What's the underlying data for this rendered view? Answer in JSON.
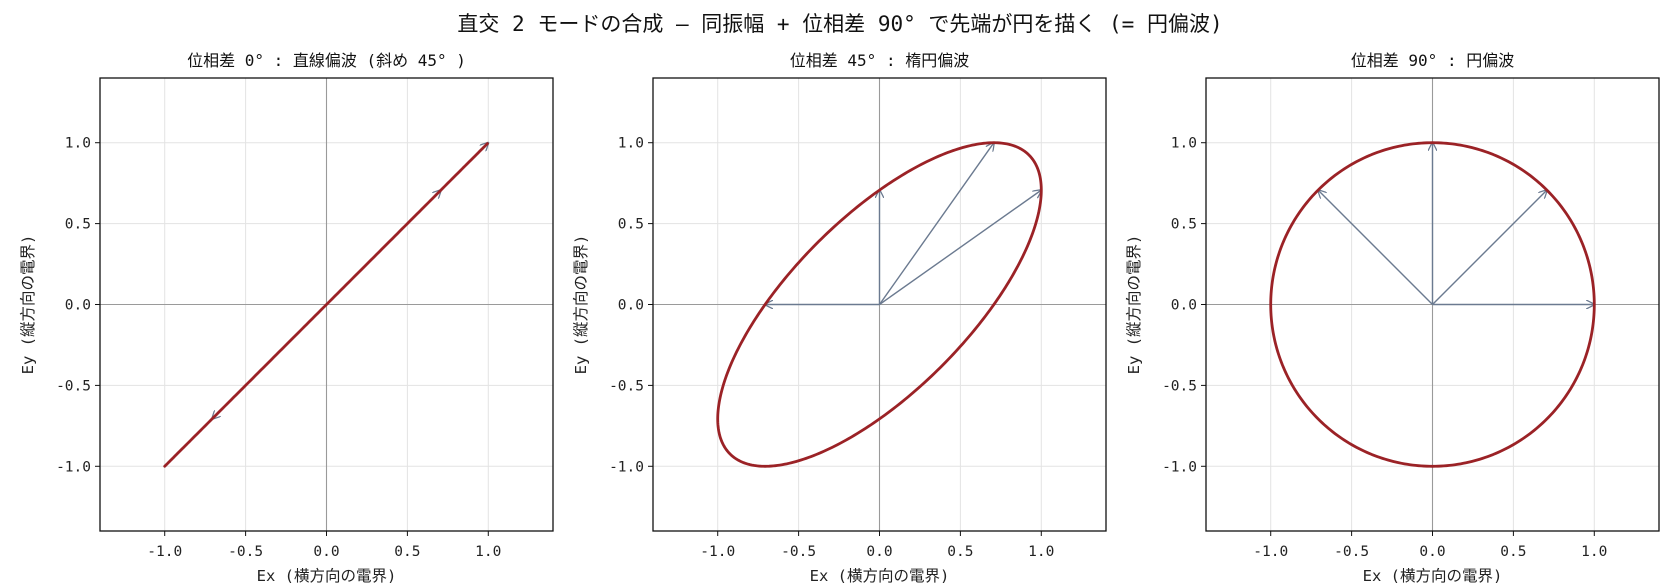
{
  "suptitle": "直交 2 モードの合成 — 同振幅 + 位相差 90° で先端が円を描く (= 円偏波)",
  "colors": {
    "curve": "#9b2226",
    "arrow": "#6b7a90",
    "grid": "#e3e3e3",
    "zero_line": "#9a9a9a",
    "frame": "#111111"
  },
  "chart_data": [
    {
      "type": "line",
      "title": "位相差 0° : 直線偏波 (斜め 45° )",
      "xlabel": "Ex (横方向の電界)",
      "ylabel": "Ey (縦方向の電界)",
      "xlim": [
        -1.4,
        1.4
      ],
      "ylim": [
        -1.4,
        1.4
      ],
      "xticks": [
        "-1.0",
        "-0.5",
        "0.0",
        "0.5",
        "1.0"
      ],
      "yticks": [
        "-1.0",
        "-0.5",
        "0.0",
        "0.5",
        "1.0"
      ],
      "xtick_values": [
        -1.0,
        -0.5,
        0.0,
        0.5,
        1.0
      ],
      "ytick_values": [
        -1.0,
        -0.5,
        0.0,
        0.5,
        1.0
      ],
      "grid": true,
      "phase_deg": 0,
      "curve": "Ex = cos(t), Ey = cos(t - phase)",
      "arrows": [
        [
          1.0,
          1.0
        ],
        [
          0.707,
          0.707
        ],
        [
          -0.707,
          -0.707
        ]
      ]
    },
    {
      "type": "line",
      "title": "位相差 45° : 楕円偏波",
      "xlabel": "Ex (横方向の電界)",
      "ylabel": "Ey (縦方向の電界)",
      "xlim": [
        -1.4,
        1.4
      ],
      "ylim": [
        -1.4,
        1.4
      ],
      "xticks": [
        "-1.0",
        "-0.5",
        "0.0",
        "0.5",
        "1.0"
      ],
      "yticks": [
        "-1.0",
        "-0.5",
        "0.0",
        "0.5",
        "1.0"
      ],
      "xtick_values": [
        -1.0,
        -0.5,
        0.0,
        0.5,
        1.0
      ],
      "ytick_values": [
        -1.0,
        -0.5,
        0.0,
        0.5,
        1.0
      ],
      "grid": true,
      "phase_deg": 45,
      "curve": "Ex = cos(t), Ey = cos(t - phase)",
      "arrows": [
        [
          -0.707,
          0.0
        ],
        [
          0.0,
          0.707
        ],
        [
          0.707,
          1.0
        ],
        [
          1.0,
          0.707
        ]
      ]
    },
    {
      "type": "line",
      "title": "位相差 90° : 円偏波",
      "xlabel": "Ex (横方向の電界)",
      "ylabel": "Ey (縦方向の電界)",
      "xlim": [
        -1.4,
        1.4
      ],
      "ylim": [
        -1.4,
        1.4
      ],
      "xticks": [
        "-1.0",
        "-0.5",
        "0.0",
        "0.5",
        "1.0"
      ],
      "yticks": [
        "-1.0",
        "-0.5",
        "0.0",
        "0.5",
        "1.0"
      ],
      "xtick_values": [
        -1.0,
        -0.5,
        0.0,
        0.5,
        1.0
      ],
      "ytick_values": [
        -1.0,
        -0.5,
        0.0,
        0.5,
        1.0
      ],
      "grid": true,
      "phase_deg": 90,
      "curve": "Ex = cos(t), Ey = cos(t - phase)",
      "arrows": [
        [
          1.0,
          0.0
        ],
        [
          0.707,
          0.707
        ],
        [
          0.0,
          1.0
        ],
        [
          -0.707,
          0.707
        ]
      ]
    }
  ]
}
